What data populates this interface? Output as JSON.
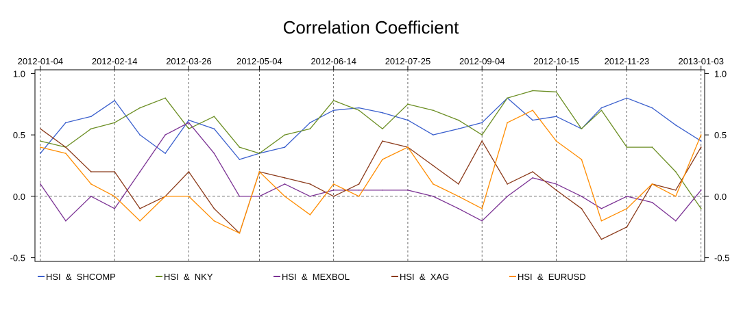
{
  "chart_data": {
    "type": "line",
    "title": "Correlation Coefficient",
    "xlabel": "",
    "ylabel": "",
    "x_ticks": [
      "2012-01-04",
      "2012-02-14",
      "2012-03-26",
      "2012-05-04",
      "2012-06-14",
      "2012-07-25",
      "2012-09-04",
      "2012-10-15",
      "2012-11-23",
      "2013-01-03"
    ],
    "y_ticks": [
      "1.0",
      "0.5",
      "0.0",
      "-0.5"
    ],
    "y_tick_values": [
      1.0,
      0.5,
      0.0,
      -0.5
    ],
    "ylim": [
      -0.53,
      1.03
    ],
    "x_range": [
      "2012-01-01",
      "2013-01-05"
    ],
    "vertical_gridlines_dashed": true,
    "zero_line_dashed": true,
    "legend_position": "bottom",
    "x": [
      "2012-01-04",
      "2012-01-18",
      "2012-02-01",
      "2012-02-14",
      "2012-02-28",
      "2012-03-13",
      "2012-03-26",
      "2012-04-09",
      "2012-04-23",
      "2012-05-04",
      "2012-05-18",
      "2012-06-01",
      "2012-06-14",
      "2012-06-28",
      "2012-07-11",
      "2012-07-25",
      "2012-08-08",
      "2012-08-22",
      "2012-09-04",
      "2012-09-18",
      "2012-10-02",
      "2012-10-15",
      "2012-10-29",
      "2012-11-09",
      "2012-11-23",
      "2012-12-07",
      "2012-12-20",
      "2013-01-03"
    ],
    "series": [
      {
        "name": "HSI  &  SHCOMP",
        "color": "#3a5fcd",
        "values": [
          0.35,
          0.6,
          0.65,
          0.78,
          0.5,
          0.35,
          0.62,
          0.55,
          0.3,
          0.35,
          0.4,
          0.6,
          0.7,
          0.72,
          0.68,
          0.62,
          0.5,
          0.55,
          0.6,
          0.8,
          0.62,
          0.65,
          0.55,
          0.72,
          0.8,
          0.72,
          0.58,
          0.45
        ]
      },
      {
        "name": "HSI  &  NKY",
        "color": "#6b8e23",
        "values": [
          0.45,
          0.4,
          0.55,
          0.6,
          0.72,
          0.8,
          0.55,
          0.65,
          0.4,
          0.35,
          0.5,
          0.55,
          0.78,
          0.7,
          0.55,
          0.75,
          0.7,
          0.62,
          0.5,
          0.8,
          0.86,
          0.85,
          0.55,
          0.7,
          0.4,
          0.4,
          0.2,
          -0.1
        ]
      },
      {
        "name": "HSI  &  MEXBOL",
        "color": "#7b3294",
        "values": [
          0.1,
          -0.2,
          0.0,
          -0.1,
          0.2,
          0.5,
          0.6,
          0.35,
          0.0,
          0.0,
          0.1,
          0.0,
          0.05,
          0.05,
          0.05,
          0.05,
          0.0,
          -0.1,
          -0.2,
          0.0,
          0.15,
          0.1,
          0.0,
          -0.1,
          0.0,
          -0.05,
          -0.2,
          0.05
        ]
      },
      {
        "name": "HSI  &  XAG",
        "color": "#8b3a1a",
        "values": [
          0.55,
          0.4,
          0.2,
          0.2,
          -0.1,
          0.0,
          0.2,
          -0.1,
          -0.3,
          0.2,
          0.15,
          0.1,
          0.0,
          0.1,
          0.45,
          0.4,
          0.25,
          0.1,
          0.45,
          0.1,
          0.2,
          0.05,
          -0.1,
          -0.35,
          -0.25,
          0.1,
          0.05,
          0.4
        ]
      },
      {
        "name": "HSI  &  EURUSD",
        "color": "#ff8c00",
        "values": [
          0.4,
          0.35,
          0.1,
          0.0,
          -0.2,
          0.0,
          0.0,
          -0.2,
          -0.3,
          0.2,
          0.0,
          -0.15,
          0.1,
          0.0,
          0.3,
          0.4,
          0.1,
          0.0,
          -0.1,
          0.6,
          0.7,
          0.45,
          0.3,
          -0.2,
          -0.1,
          0.1,
          0.0,
          0.5
        ]
      }
    ]
  }
}
